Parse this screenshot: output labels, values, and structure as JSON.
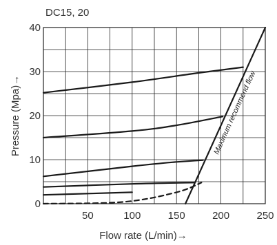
{
  "chart_data": {
    "type": "line",
    "title": "DC15, 20",
    "xlabel": "Flow rate (L/min)→",
    "ylabel": "Pressure (Mpa)→",
    "xlim": [
      0,
      250
    ],
    "ylim": [
      0,
      40
    ],
    "x_ticks": [
      "50",
      "100",
      "150",
      "200",
      "250"
    ],
    "y_ticks": [
      "0",
      "10",
      "20",
      "30",
      "40"
    ],
    "grid": true,
    "series": [
      {
        "style": "solid",
        "points": [
          [
            0,
            25.2
          ],
          [
            100,
            27.6
          ],
          [
            175,
            29.7
          ],
          [
            225,
            31.0
          ]
        ]
      },
      {
        "style": "solid",
        "points": [
          [
            0,
            15.0
          ],
          [
            100,
            16.5
          ],
          [
            150,
            17.8
          ],
          [
            202,
            19.8
          ]
        ]
      },
      {
        "style": "solid",
        "points": [
          [
            0,
            6.2
          ],
          [
            100,
            8.5
          ],
          [
            145,
            9.4
          ],
          [
            180,
            9.9
          ]
        ]
      },
      {
        "style": "solid",
        "points": [
          [
            0,
            3.8
          ],
          [
            100,
            4.5
          ],
          [
            170,
            4.8
          ]
        ]
      },
      {
        "style": "solid",
        "points": [
          [
            0,
            2.0
          ],
          [
            100,
            2.6
          ]
        ]
      },
      {
        "style": "dashed",
        "points": [
          [
            0,
            0.0
          ],
          [
            90,
            0.4
          ],
          [
            150,
            2.6
          ],
          [
            178,
            4.8
          ]
        ]
      },
      {
        "style": "solid",
        "name": "Maximum recommend flow",
        "points": [
          [
            160,
            0
          ],
          [
            250,
            40
          ]
        ]
      }
    ],
    "annotations": [
      {
        "text": "Maximum recommend flow"
      }
    ],
    "colors": {
      "line": "#1a1a1a",
      "grid": "#222222",
      "text": "#333333"
    }
  }
}
